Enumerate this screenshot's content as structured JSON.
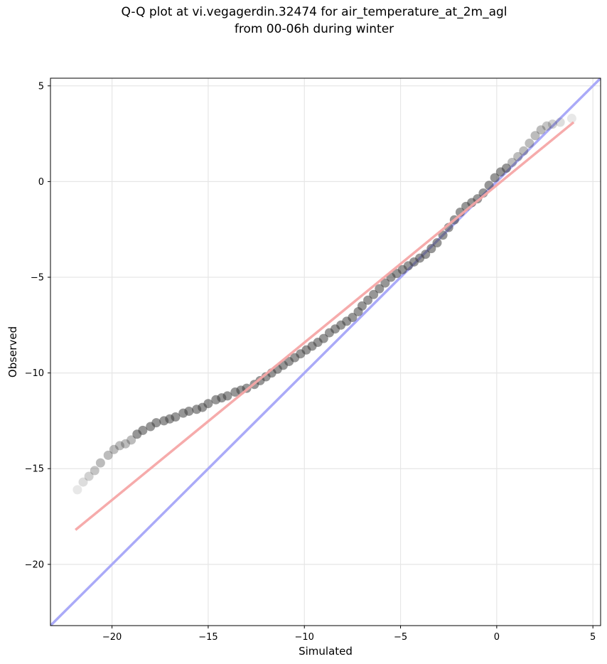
{
  "chart_data": {
    "type": "scatter",
    "title": "Q-Q plot at vi.vegagerdin.32474 for air_temperature_at_2m_agl",
    "subtitle": "from 00-06h during winter",
    "xlabel": "Simulated",
    "ylabel": "Observed",
    "xlim": [
      -23.2,
      5.4
    ],
    "ylim": [
      -23.2,
      5.4
    ],
    "grid": true,
    "x_ticks": [
      -20,
      -15,
      -10,
      -5,
      0,
      5
    ],
    "y_ticks": [
      -20,
      -15,
      -10,
      -5,
      0,
      5
    ],
    "x_tick_labels": [
      "−20",
      "−15",
      "−10",
      "−5",
      "0",
      "5"
    ],
    "y_tick_labels": [
      "−20",
      "−15",
      "−10",
      "−5",
      "0",
      "5"
    ],
    "identity_line": {
      "from": [
        -23.2,
        -23.2
      ],
      "to": [
        5.4,
        5.4
      ],
      "color": "#aaaaf8"
    },
    "fit_line": {
      "from": [
        -21.9,
        -18.2
      ],
      "to": [
        4.0,
        3.1
      ],
      "color": "#f6a6a6"
    },
    "point_color": "#404040",
    "points": [
      [
        -21.8,
        -16.1
      ],
      [
        -21.5,
        -15.7
      ],
      [
        -21.2,
        -15.4
      ],
      [
        -20.9,
        -15.1
      ],
      [
        -20.6,
        -14.7
      ],
      [
        -20.2,
        -14.3
      ],
      [
        -19.9,
        -14.0
      ],
      [
        -19.6,
        -13.8
      ],
      [
        -19.3,
        -13.7
      ],
      [
        -19.0,
        -13.5
      ],
      [
        -18.7,
        -13.2
      ],
      [
        -18.4,
        -13.0
      ],
      [
        -18.0,
        -12.8
      ],
      [
        -17.7,
        -12.6
      ],
      [
        -17.3,
        -12.5
      ],
      [
        -17.0,
        -12.4
      ],
      [
        -16.7,
        -12.3
      ],
      [
        -16.3,
        -12.1
      ],
      [
        -16.0,
        -12.0
      ],
      [
        -15.6,
        -11.9
      ],
      [
        -15.3,
        -11.8
      ],
      [
        -15.0,
        -11.6
      ],
      [
        -14.6,
        -11.4
      ],
      [
        -14.3,
        -11.3
      ],
      [
        -14.0,
        -11.2
      ],
      [
        -13.6,
        -11.0
      ],
      [
        -13.3,
        -10.9
      ],
      [
        -13.0,
        -10.8
      ],
      [
        -12.6,
        -10.6
      ],
      [
        -12.3,
        -10.4
      ],
      [
        -12.0,
        -10.2
      ],
      [
        -11.7,
        -10.0
      ],
      [
        -11.4,
        -9.8
      ],
      [
        -11.1,
        -9.6
      ],
      [
        -10.8,
        -9.4
      ],
      [
        -10.5,
        -9.2
      ],
      [
        -10.2,
        -9.0
      ],
      [
        -9.9,
        -8.8
      ],
      [
        -9.6,
        -8.6
      ],
      [
        -9.3,
        -8.4
      ],
      [
        -9.0,
        -8.2
      ],
      [
        -8.7,
        -7.9
      ],
      [
        -8.4,
        -7.7
      ],
      [
        -8.1,
        -7.5
      ],
      [
        -7.8,
        -7.3
      ],
      [
        -7.5,
        -7.1
      ],
      [
        -7.2,
        -6.8
      ],
      [
        -7.0,
        -6.5
      ],
      [
        -6.7,
        -6.2
      ],
      [
        -6.4,
        -5.9
      ],
      [
        -6.1,
        -5.6
      ],
      [
        -5.8,
        -5.3
      ],
      [
        -5.5,
        -5.0
      ],
      [
        -5.2,
        -4.8
      ],
      [
        -4.9,
        -4.6
      ],
      [
        -4.6,
        -4.4
      ],
      [
        -4.3,
        -4.2
      ],
      [
        -4.0,
        -4.0
      ],
      [
        -3.7,
        -3.8
      ],
      [
        -3.4,
        -3.5
      ],
      [
        -3.1,
        -3.2
      ],
      [
        -2.8,
        -2.8
      ],
      [
        -2.5,
        -2.4
      ],
      [
        -2.2,
        -2.0
      ],
      [
        -1.9,
        -1.6
      ],
      [
        -1.6,
        -1.3
      ],
      [
        -1.3,
        -1.1
      ],
      [
        -1.0,
        -0.9
      ],
      [
        -0.7,
        -0.6
      ],
      [
        -0.4,
        -0.2
      ],
      [
        -0.1,
        0.2
      ],
      [
        0.2,
        0.5
      ],
      [
        0.5,
        0.7
      ],
      [
        0.8,
        1.0
      ],
      [
        1.1,
        1.3
      ],
      [
        1.4,
        1.6
      ],
      [
        1.7,
        2.0
      ],
      [
        2.0,
        2.4
      ],
      [
        2.3,
        2.7
      ],
      [
        2.6,
        2.9
      ],
      [
        2.9,
        3.0
      ],
      [
        3.3,
        3.1
      ],
      [
        3.9,
        3.3
      ]
    ]
  }
}
